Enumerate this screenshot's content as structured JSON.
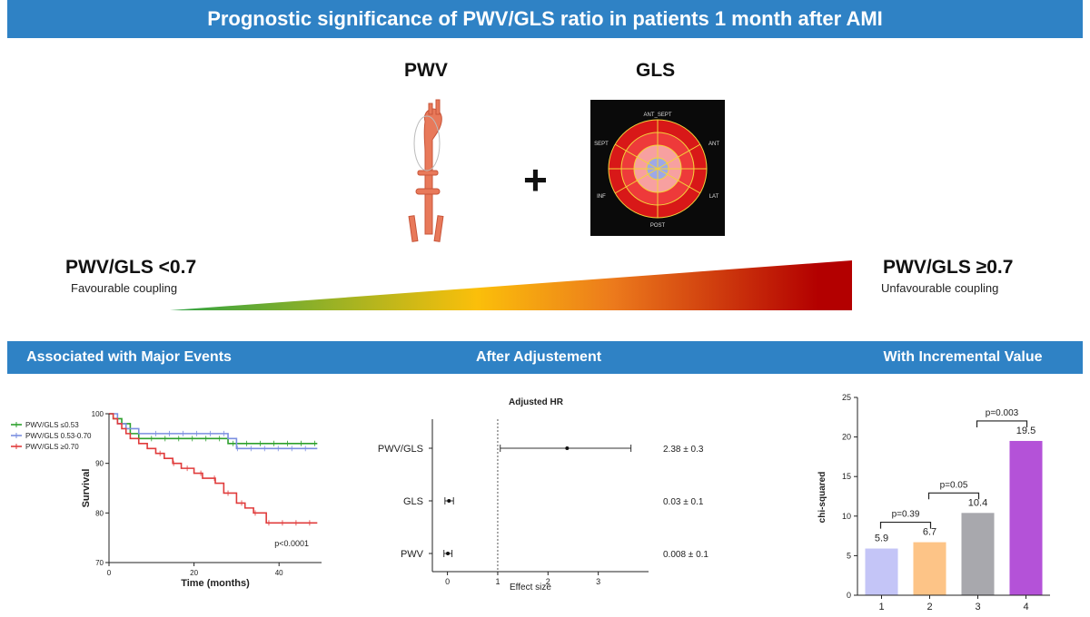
{
  "header": {
    "title": "Prognostic significance of PWV/GLS ratio in patients 1 month after AMI"
  },
  "top": {
    "pwv_label": "PWV",
    "gls_label": "GLS",
    "plus": "+",
    "left_ratio": "PWV/GLS <0.7",
    "left_caption": "Favourable coupling",
    "right_ratio": "PWV/GLS ≥0.7",
    "right_caption": "Unfavourable coupling",
    "bullseye_labels": [
      "ANT_SEPT",
      "ANT",
      "LAT",
      "POST",
      "INF",
      "SEPT"
    ],
    "colors": {
      "green": "#2ca243",
      "yellow": "#fbbf0a",
      "orange": "#ec7a1c",
      "red": "#b30000"
    }
  },
  "sections": [
    "Associated with Major Events",
    "After Adjustement",
    "With Incremental Value"
  ],
  "chart_data": [
    {
      "type": "line",
      "title": "",
      "xlabel": "Time (months)",
      "ylabel": "Survival",
      "xlim": [
        0,
        50
      ],
      "ylim": [
        70,
        100
      ],
      "xticks": [
        "0",
        "20",
        "40"
      ],
      "yticks": [
        "70",
        "80",
        "90",
        "100"
      ],
      "annotation": "p<0.0001",
      "legend_position": "top-left",
      "series": [
        {
          "name": "PWV/GLS ≤0.53",
          "color": "#2ca02c",
          "x": [
            0,
            1,
            3,
            5,
            7,
            10,
            28,
            30,
            49
          ],
          "y": [
            100,
            99,
            98,
            96,
            95,
            95,
            94,
            94,
            94
          ]
        },
        {
          "name": "PWV/GLS 0.53-0.70",
          "color": "#7b8fe0",
          "x": [
            0,
            2,
            4,
            7,
            10,
            28,
            30,
            49
          ],
          "y": [
            100,
            98,
            97,
            96,
            96,
            95,
            93,
            93
          ]
        },
        {
          "name": "PWV/GLS ≥0.70",
          "color": "#e03b3b",
          "x": [
            0,
            1,
            2,
            3,
            4,
            5,
            7,
            9,
            11,
            13,
            15,
            17,
            20,
            22,
            25,
            27,
            30,
            32,
            34,
            37,
            49
          ],
          "y": [
            100,
            99,
            98,
            97,
            96,
            95,
            94,
            93,
            92,
            91,
            90,
            89,
            88,
            87,
            86,
            84,
            82,
            81,
            80,
            78,
            78
          ]
        }
      ]
    },
    {
      "type": "scatter",
      "title": "Adjusted HR",
      "xlabel": "Effect size",
      "xlim": [
        -0.3,
        4
      ],
      "xticks": [
        "0",
        "1",
        "2",
        "3"
      ],
      "reference_line": 1,
      "rows": [
        {
          "label": "PWV/GLS",
          "estimate": 2.38,
          "ci": [
            1.05,
            3.65
          ],
          "value_text": "2.38 ± 0.3"
        },
        {
          "label": "GLS",
          "estimate": 0.03,
          "ci": [
            -0.05,
            0.12
          ],
          "value_text": "0.03 ± 0.1"
        },
        {
          "label": "PWV",
          "estimate": 0.008,
          "ci": [
            -0.07,
            0.09
          ],
          "value_text": "0.008 ± 0.1"
        }
      ]
    },
    {
      "type": "bar",
      "title": "",
      "xlabel": "",
      "ylabel": "chi-squared",
      "ylim": [
        0,
        25
      ],
      "yticks": [
        "0",
        "5",
        "10",
        "15",
        "20",
        "25"
      ],
      "categories": [
        "1",
        "2",
        "3",
        "4"
      ],
      "values": [
        5.9,
        6.7,
        10.4,
        19.5
      ],
      "value_labels": [
        "5.9",
        "6.7",
        "10.4",
        "19.5"
      ],
      "colors": [
        "#c4c5f7",
        "#fdc487",
        "#a8a8ad",
        "#b452d8"
      ],
      "comparisons": [
        {
          "from": 1,
          "to": 2,
          "label": "p=0.39"
        },
        {
          "from": 2,
          "to": 3,
          "label": "p=0.05"
        },
        {
          "from": 3,
          "to": 4,
          "label": "p=0.003"
        }
      ]
    }
  ]
}
